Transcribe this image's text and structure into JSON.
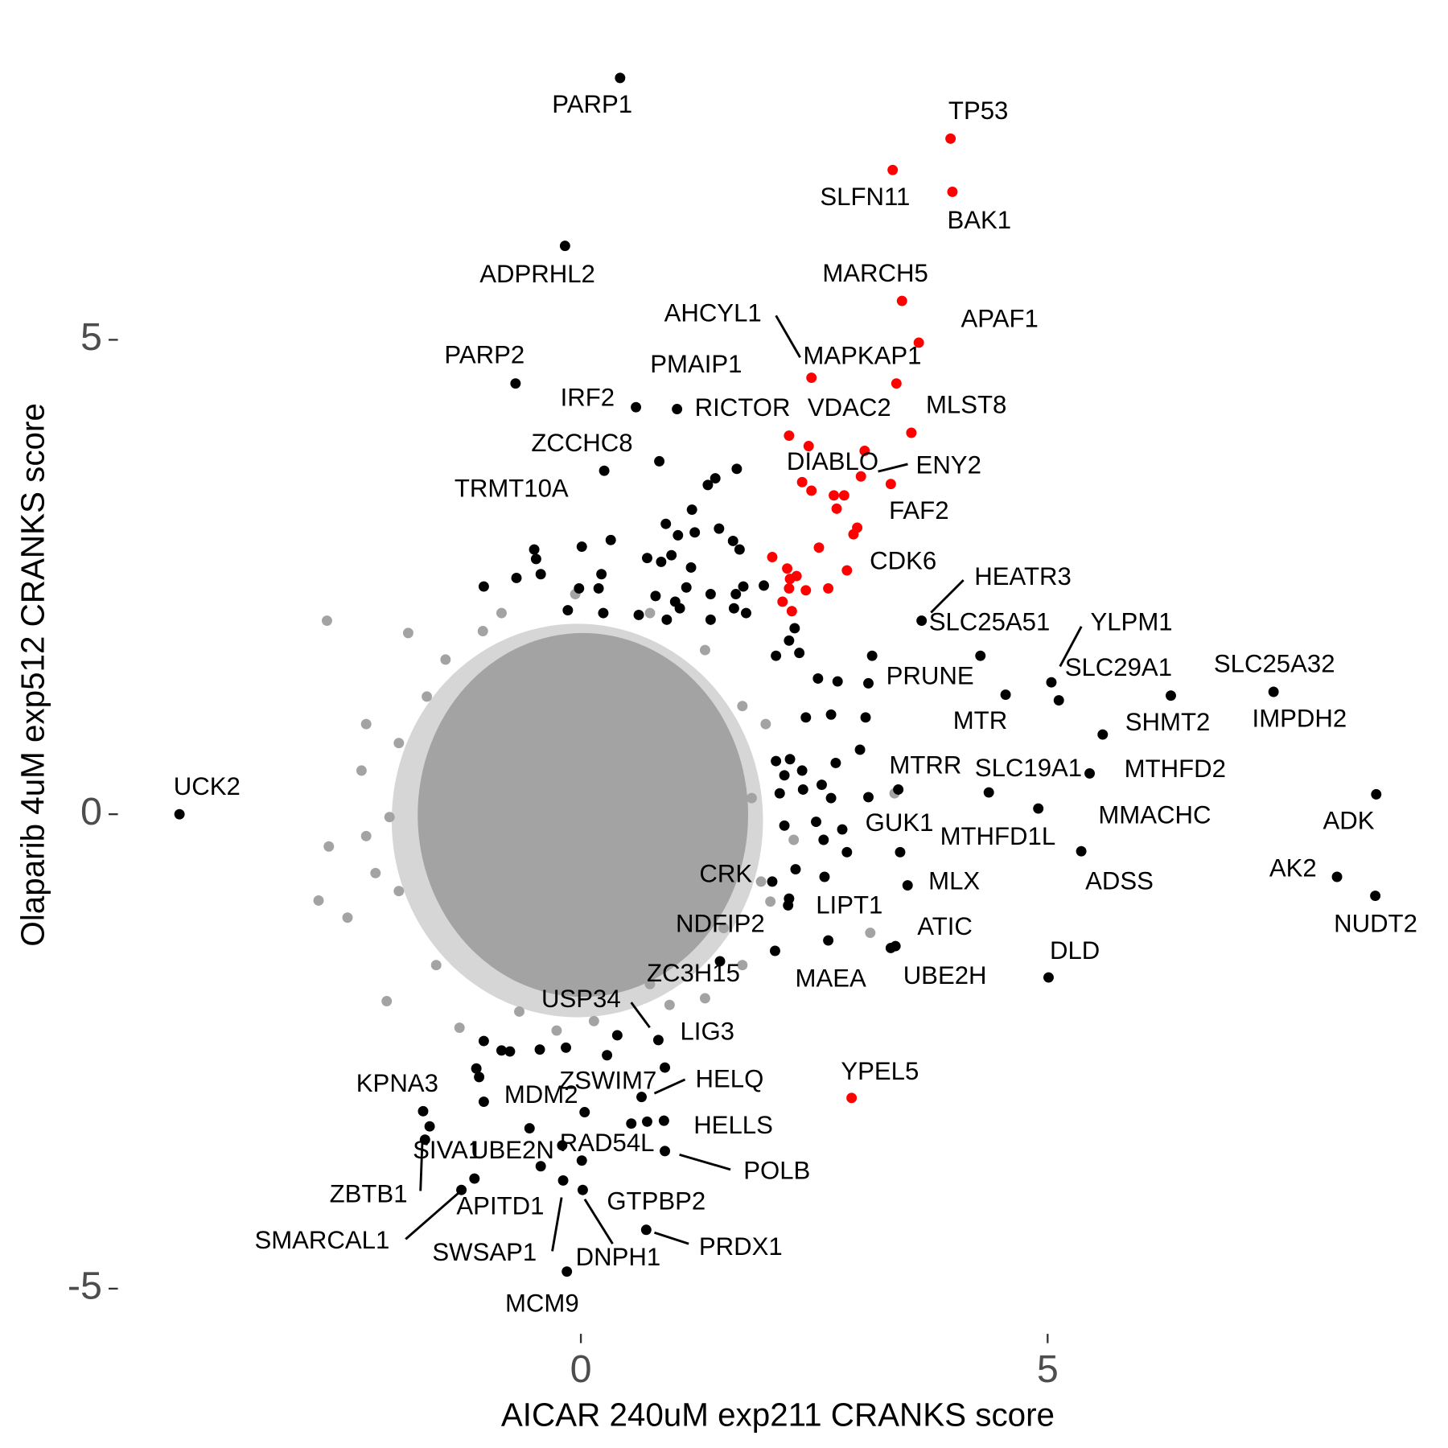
{
  "chart_data": {
    "type": "scatter",
    "x_label": "AICAR 240uM exp211 CRANKS score",
    "y_label": "Olaparib 4uM exp512 CRANKS score",
    "xlim": [
      -4.93,
      9.09
    ],
    "ylim": [
      -5.31,
      8.19
    ],
    "xticks": [
      0,
      5
    ],
    "yticks": [
      -5,
      0,
      5
    ],
    "grid": false,
    "series": [
      {
        "color": "#a3a3a3",
        "x": [
          -2.72,
          -2.7,
          -2.81,
          -2.5,
          3.1,
          2.03,
          2.28,
          3.36,
          -1.85,
          -2.3,
          -2.08,
          -1.3,
          0.95,
          1.33,
          1.73,
          1.93,
          1.83,
          1.73,
          1.33,
          0.74,
          -0.06,
          -0.85,
          -1.45,
          -1.95,
          -2.05,
          -1.95,
          -1.55,
          -0.66,
          0.14,
          0.74,
          1.53,
          -2.35,
          -2.2,
          1.98,
          -2.3,
          -1.65,
          -0.26,
          -1.05
        ],
        "y": [
          2.04,
          -0.34,
          -0.91,
          -1.09,
          -1.25,
          -0.92,
          -0.27,
          0.22,
          1.91,
          0.95,
          -1.97,
          -2.25,
          -2.01,
          -1.94,
          -1.59,
          -0.71,
          0.17,
          1.14,
          1.73,
          2.12,
          2.32,
          2.12,
          1.63,
          0.75,
          -0.03,
          -0.81,
          -1.59,
          -2.08,
          -2.18,
          -1.79,
          -1.2,
          0.46,
          -0.62,
          0.95,
          -0.23,
          1.24,
          -2.28,
          1.93
        ]
      },
      {
        "color": "#000000",
        "x": [
          0.42,
          -0.17,
          -0.7,
          1.03,
          0.59,
          0.84,
          0.25,
          3.65,
          4.28,
          5.04,
          3.08,
          5.12,
          6.32,
          7.42,
          4.55,
          5.59,
          5.45,
          3.4,
          4.37,
          4.9,
          8.52,
          -4.3,
          3.08,
          3.42,
          5.36,
          8.1,
          8.51,
          2.05,
          3.5,
          2.23,
          2.08,
          3.37,
          2.65,
          3.32,
          5.01,
          1.49,
          0.39,
          0.83,
          0.9,
          0.65,
          -1.69,
          -0.55,
          0.89,
          -1.62,
          -0.43,
          -0.2,
          0.9,
          -1.67,
          -1.14,
          -1.28,
          0.71,
          -0.19,
          0.02,
          0.7,
          -0.15,
          1.67,
          1.44,
          1.36,
          1.19,
          0.91,
          1.48,
          1.22,
          1.04,
          0.01,
          0.32,
          -0.5,
          -0.48,
          1.63,
          1.7,
          0.97,
          0.71,
          0.86,
          1.18,
          -0.69,
          -0.43,
          0.22,
          -1.04,
          -0.02,
          0.19,
          1.13,
          1.74,
          1.39,
          1.66,
          0.8,
          1.01,
          1.06,
          -0.14,
          0.24,
          0.62,
          1.39,
          0.92,
          1.64,
          1.77,
          1.96,
          2.29,
          2.23,
          2.09,
          2.34,
          2.54,
          3.12,
          2.75,
          2.41,
          2.68,
          3.05,
          2.09,
          2.24,
          2.37,
          2.73,
          2.99,
          2.18,
          2.13,
          2.38,
          2.58,
          2.68,
          2.18,
          2.52,
          2.8,
          2.6,
          2.85,
          2.3,
          2.61,
          2.22,
          -1.04,
          -0.76,
          -0.85,
          -0.44,
          -0.16,
          0.28,
          -1.12,
          -1.09,
          -1.04,
          0.04,
          0.54,
          0.01
        ],
        "y": [
          7.76,
          5.99,
          4.54,
          4.27,
          4.29,
          3.72,
          3.62,
          2.04,
          1.67,
          1.39,
          1.38,
          1.2,
          1.25,
          1.29,
          1.26,
          0.84,
          0.43,
          0.26,
          0.23,
          0.06,
          0.21,
          0.0,
          0.18,
          -0.4,
          -0.39,
          -0.66,
          -0.86,
          -0.71,
          -0.75,
          -0.89,
          -1.44,
          -1.39,
          -1.33,
          -1.41,
          -1.72,
          -1.55,
          -2.33,
          -2.38,
          -2.67,
          -2.98,
          -3.13,
          -3.31,
          -3.23,
          -3.29,
          -3.71,
          -3.49,
          -3.55,
          -3.43,
          -3.84,
          -3.96,
          -3.24,
          -3.86,
          -3.96,
          -4.38,
          -4.82,
          3.64,
          3.54,
          3.47,
          3.21,
          3.06,
          3.01,
          2.97,
          2.94,
          2.82,
          2.89,
          2.79,
          2.69,
          2.88,
          2.79,
          2.73,
          2.7,
          2.66,
          2.6,
          2.49,
          2.53,
          2.53,
          2.4,
          2.38,
          2.38,
          2.39,
          2.4,
          2.32,
          2.32,
          2.3,
          2.24,
          2.17,
          2.15,
          2.12,
          2.1,
          2.05,
          2.05,
          2.17,
          2.12,
          2.41,
          1.96,
          1.83,
          1.67,
          1.7,
          1.43,
          1.67,
          1.4,
          1.02,
          1.05,
          1.02,
          0.56,
          0.58,
          0.46,
          0.54,
          0.68,
          0.41,
          0.22,
          0.26,
          0.31,
          0.17,
          -0.12,
          -0.08,
          -0.16,
          -0.27,
          -0.4,
          -0.58,
          -0.66,
          -0.96,
          -2.39,
          -2.5,
          -2.49,
          -2.48,
          -2.46,
          -2.54,
          -2.68,
          -2.77,
          -3.03,
          -3.14,
          -3.26,
          -3.65
        ],
        "labels": [
          "PARP1",
          "ADPRHL2",
          "PARP2",
          "PMAIP1",
          "IRF2",
          "ZCCHC8",
          "TRMT10A",
          "HEATR3",
          "SLC25A51",
          "YLPM1",
          "PRUNE",
          "SLC29A1",
          "SLC25A32",
          "IMPDH2",
          "MTR",
          "SHMT2",
          "MTHFD2",
          "MTRR",
          "SLC19A1",
          "MMACHC",
          "ADK",
          "UCK2",
          "GUK1",
          "MTHFD1L",
          "ADSS",
          "AK2",
          "NUDT2",
          "CRK",
          "MLX",
          "LIPT1",
          "NDFIP2",
          "ATIC",
          "MAEA",
          "UBE2H",
          "DLD",
          "ZC3H15",
          "USP34",
          "LIG3",
          "HELQ",
          "ZSWIM7",
          "KPNA3",
          "MDM2",
          "HELLS",
          "SIVA1",
          "UBE2N",
          "RAD54L",
          "POLB",
          "ZBTB1",
          "APITD1",
          "SMARCAL1",
          "GTPBP2",
          "SWSAP1",
          "DNPH1",
          "PRDX1",
          "MCM9",
          null,
          null,
          null,
          null,
          null,
          null,
          null,
          null,
          null,
          null,
          null,
          null,
          null,
          null,
          null,
          null,
          null,
          null,
          null,
          null,
          null,
          null,
          null,
          null,
          null,
          null,
          null,
          null,
          null,
          null,
          null,
          null,
          null,
          null,
          null,
          null,
          null,
          null,
          null,
          null,
          null,
          null,
          null,
          null,
          null,
          null,
          null,
          null,
          null,
          null,
          null,
          null,
          null,
          null,
          null,
          null,
          null,
          null,
          null,
          null,
          null,
          null,
          null,
          null,
          null,
          null,
          null,
          null,
          null,
          null,
          null,
          null,
          null,
          null,
          null,
          null,
          null,
          null,
          null
        ]
      },
      {
        "color": "#ff0000",
        "x": [
          3.96,
          3.34,
          3.98,
          3.44,
          3.62,
          2.47,
          3.38,
          2.23,
          2.44,
          3.54,
          3.04,
          3.0,
          3.32,
          2.85,
          2.9,
          2.37,
          2.47,
          2.71,
          2.82,
          2.74,
          2.96,
          2.92,
          2.55,
          2.05,
          2.21,
          2.31,
          2.24,
          2.23,
          2.41,
          2.65,
          2.16,
          2.26
        ],
        "y": [
          7.12,
          6.79,
          6.56,
          5.41,
          4.97,
          4.6,
          4.54,
          3.99,
          3.88,
          4.02,
          3.83,
          3.56,
          3.48,
          2.57,
          -2.99,
          3.5,
          3.41,
          3.36,
          3.36,
          3.22,
          3.02,
          2.95,
          2.81,
          2.71,
          2.59,
          2.51,
          2.48,
          2.38,
          2.36,
          2.38,
          2.24,
          2.14
        ],
        "labels": [
          "TP53",
          "SLFN11",
          "BAK1",
          "MARCH5",
          "APAF1",
          "AHCYL1",
          "MAPKAP1",
          "RICTOR",
          "VDAC2",
          "MLST8",
          "DIABLO",
          "ENY2",
          "FAF2",
          "CDK6",
          "YPEL5",
          null,
          null,
          null,
          null,
          null,
          null,
          null,
          null,
          null,
          null,
          null,
          null,
          null,
          null,
          null,
          null,
          null
        ]
      }
    ]
  }
}
